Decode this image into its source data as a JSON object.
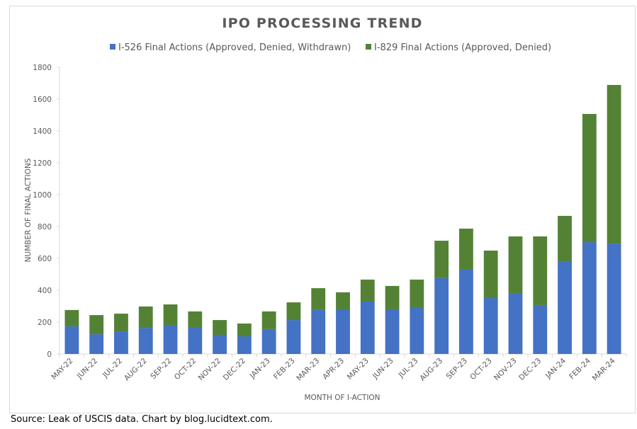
{
  "chart_data": {
    "type": "bar",
    "stacked": true,
    "title": "IPO PROCESSING TREND",
    "xlabel": "MONTH OF I-ACTION",
    "ylabel": "NUMBER OF FINAL ACTIONS",
    "ylim": [
      0,
      1800
    ],
    "yticks": [
      0,
      200,
      400,
      600,
      800,
      1000,
      1200,
      1400,
      1600,
      1800
    ],
    "grid": false,
    "legend_position": "top",
    "categories": [
      "MAY-22",
      "JUN-22",
      "JUL-22",
      "AUG-22",
      "SEP-22",
      "OCT-22",
      "NOV-22",
      "DEC-22",
      "JAN-23",
      "FEB-23",
      "MAR-23",
      "APR-23",
      "MAY-23",
      "JUN-23",
      "JUL-23",
      "AUG-23",
      "SEP-23",
      "OCT-23",
      "NOV-23",
      "DEC-23",
      "JAN-24",
      "FEB-24",
      "MAR-24"
    ],
    "series": [
      {
        "name": "I-526 Final Actions (Approved, Denied, Withdrawn)",
        "color": "#4472C4",
        "values": [
          173,
          124,
          142,
          164,
          178,
          169,
          120,
          111,
          156,
          213,
          276,
          280,
          329,
          280,
          289,
          476,
          529,
          351,
          378,
          307,
          578,
          702,
          693
        ]
      },
      {
        "name": "I-829 Final Actions (Approved, Denied)",
        "color": "#548235",
        "values": [
          103,
          120,
          111,
          134,
          133,
          98,
          93,
          80,
          111,
          111,
          137,
          107,
          138,
          147,
          178,
          235,
          258,
          298,
          360,
          431,
          289,
          805,
          996
        ]
      }
    ]
  },
  "footer": {
    "source": "Source: Leak of USCIS data. Chart by blog.lucidtext.com."
  }
}
